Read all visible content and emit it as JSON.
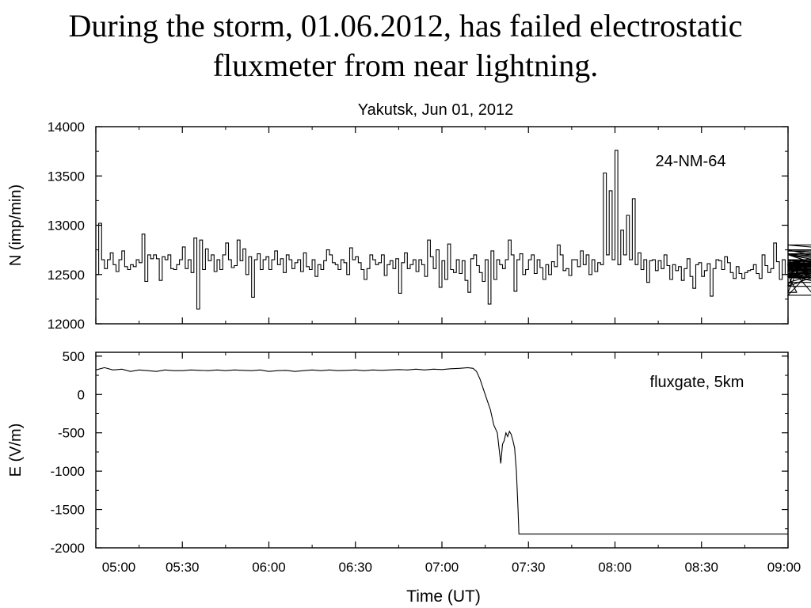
{
  "slide": {
    "title_line1": "During the storm, 01.06.2012, has failed electrostatic",
    "title_line2": "fluxmeter from near lightning."
  },
  "chart_data": [
    {
      "type": "line",
      "title": "Yakutsk, Jun 01, 2012",
      "annotation": "24-NM-64",
      "ylabel": "N (imp/min)",
      "xlabel": "",
      "ylim": [
        12000,
        14000
      ],
      "yticks": [
        12000,
        12500,
        13000,
        13500,
        14000
      ],
      "xlim_hours": [
        5,
        9
      ],
      "step": true,
      "series": [
        {
          "x_hours_start": 5.0,
          "x_hours_step": 0.0166667,
          "values": [
            12500,
            13020,
            12650,
            12560,
            12650,
            12720,
            12600,
            12530,
            12650,
            12740,
            12580,
            12550,
            12600,
            12580,
            12650,
            12620,
            12910,
            12430,
            12700,
            12660,
            12700,
            12660,
            12440,
            12680,
            12650,
            12700,
            12560,
            12550,
            12600,
            12650,
            12780,
            12560,
            12650,
            12520,
            12870,
            12150,
            12850,
            12550,
            12760,
            12640,
            12700,
            12530,
            12650,
            12550,
            12700,
            12820,
            12650,
            12570,
            12590,
            12850,
            12640,
            12760,
            12500,
            12680,
            12270,
            12650,
            12710,
            12550,
            12650,
            12680,
            12550,
            12650,
            12740,
            12600,
            12660,
            12520,
            12700,
            12650,
            12560,
            12620,
            12650,
            12530,
            12720,
            12580,
            12550,
            12650,
            12480,
            12600,
            12550,
            12640,
            12750,
            12700,
            12620,
            12600,
            12550,
            12650,
            12620,
            12500,
            12770,
            12650,
            12680,
            12620,
            12550,
            12450,
            12560,
            12700,
            12650,
            12600,
            12620,
            12700,
            12490,
            12600,
            12640,
            12560,
            12660,
            12310,
            12620,
            12720,
            12560,
            12600,
            12650,
            12530,
            12650,
            12600,
            12480,
            12850,
            12680,
            12560,
            12750,
            12370,
            12640,
            12450,
            12810,
            12550,
            12520,
            12650,
            12510,
            12640,
            12440,
            12320,
            12660,
            12700,
            12590,
            12520,
            12430,
            12650,
            12200,
            12740,
            12450,
            12650,
            12600,
            12560,
            12650,
            12850,
            12700,
            12330,
            12650,
            12710,
            12500,
            12550,
            12650,
            12700,
            12510,
            12650,
            12570,
            12450,
            12600,
            12500,
            12630,
            12580,
            12800,
            12700,
            12540,
            12560,
            12490,
            12650,
            12650,
            12580,
            12740,
            12600,
            12700,
            12500,
            12650,
            12530,
            12620,
            12600,
            13530,
            12700,
            13350,
            12650,
            13760,
            12600,
            12950,
            12700,
            13100,
            12650,
            13270,
            12600,
            12720,
            12550,
            12650,
            12420,
            12640,
            12650,
            12540,
            12640,
            12560,
            12700,
            12590,
            12450,
            12600,
            12540,
            12580,
            12440,
            12560,
            12660,
            12480,
            12360,
            12600,
            12620,
            12480,
            12540,
            12610,
            12280,
            12560,
            12650,
            12640,
            12550,
            12680,
            12620,
            12520,
            12460,
            12580,
            12510,
            12460,
            12520,
            12540,
            12550,
            12600,
            12510,
            12460,
            12700,
            12590,
            12520,
            12560,
            12820,
            12630,
            12450,
            12650,
            12500,
            12640,
            12390,
            12500,
            12320,
            12600,
            12480,
            12640,
            12550,
            12590,
            12290,
            12600,
            12620,
            12650,
            12550,
            12700,
            12560,
            12490,
            12380,
            12580,
            12650,
            12510,
            12700,
            12500,
            12470,
            12420,
            12620,
            12750,
            12570,
            12700,
            12600,
            12700,
            12530,
            12800,
            12710,
            12610,
            12550,
            12500,
            12600,
            12580,
            12550,
            12530,
            12620,
            12560,
            12510,
            12600,
            12560,
            12470,
            12540,
            12600,
            12470,
            12740,
            12650,
            12500
          ]
        }
      ]
    },
    {
      "type": "line",
      "title": "",
      "annotation": "fluxgate, 5km",
      "ylabel": "E (V/m)",
      "xlabel": "Time (UT)",
      "ylim": [
        -2000,
        550
      ],
      "yticks": [
        -2000,
        -1500,
        -1000,
        -500,
        0,
        500
      ],
      "xlim_hours": [
        5,
        9
      ],
      "xticks_hours": [
        5.0,
        5.5,
        6.0,
        6.5,
        7.0,
        7.5,
        8.0,
        8.5,
        9.0
      ],
      "xtick_labels": [
        "05:00",
        "05:30",
        "06:00",
        "06:30",
        "07:00",
        "07:30",
        "08:00",
        "08:30",
        "09:00"
      ],
      "series": [
        {
          "x_hours": [
            5.0,
            5.05,
            5.1,
            5.15,
            5.2,
            5.25,
            5.3,
            5.35,
            5.4,
            5.45,
            5.5,
            5.55,
            5.6,
            5.65,
            5.7,
            5.75,
            5.8,
            5.85,
            5.9,
            5.95,
            6.0,
            6.05,
            6.1,
            6.15,
            6.2,
            6.25,
            6.3,
            6.35,
            6.4,
            6.45,
            6.5,
            6.55,
            6.6,
            6.65,
            6.7,
            6.75,
            6.8,
            6.85,
            6.9,
            6.95,
            7.0,
            7.05,
            7.1,
            7.15,
            7.18,
            7.2,
            7.22,
            7.25,
            7.28,
            7.3,
            7.32,
            7.33,
            7.34,
            7.35,
            7.36,
            7.37,
            7.38,
            7.39,
            7.4,
            7.41,
            7.42,
            7.43,
            7.44,
            7.445,
            9.0
          ],
          "values": [
            320,
            350,
            320,
            330,
            300,
            320,
            310,
            300,
            320,
            310,
            310,
            320,
            315,
            310,
            320,
            310,
            320,
            315,
            310,
            320,
            300,
            310,
            315,
            300,
            310,
            320,
            310,
            320,
            310,
            315,
            320,
            310,
            320,
            315,
            320,
            325,
            320,
            330,
            320,
            330,
            325,
            335,
            340,
            350,
            340,
            300,
            200,
            0,
            -200,
            -400,
            -500,
            -700,
            -900,
            -650,
            -600,
            -500,
            -550,
            -480,
            -520,
            -600,
            -700,
            -1000,
            -1500,
            -1820,
            -1820
          ]
        }
      ]
    }
  ]
}
